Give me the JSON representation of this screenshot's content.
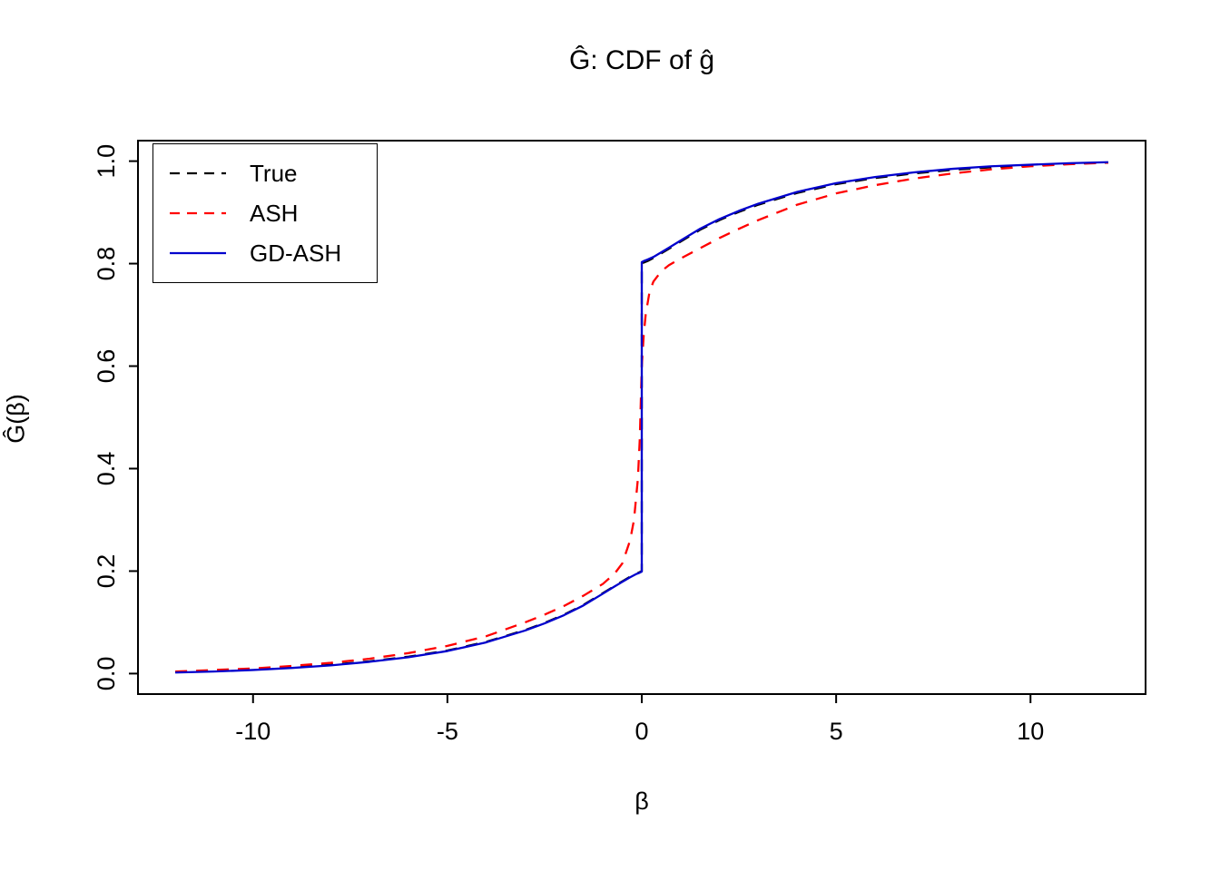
{
  "chart_data": {
    "type": "line",
    "title": "Ĝ: CDF of ĝ",
    "xlabel": "β",
    "ylabel": "Ĝ(β)",
    "xlim": [
      -12.96,
      12.96
    ],
    "ylim": [
      -0.04,
      1.04
    ],
    "xticks": [
      -10,
      -5,
      0,
      5,
      10
    ],
    "xticklabels": [
      "-10",
      "-5",
      "0",
      "5",
      "10"
    ],
    "yticks": [
      0.0,
      0.2,
      0.4,
      0.6,
      0.8,
      1.0
    ],
    "yticklabels": [
      "0.0",
      "0.2",
      "0.4",
      "0.6",
      "0.8",
      "1.0"
    ],
    "grid": false,
    "legend_position": "top-left",
    "series": [
      {
        "name": "True",
        "color": "#000000",
        "style": "dashed",
        "points": [
          [
            -12,
            0.003
          ],
          [
            -11,
            0.005
          ],
          [
            -10,
            0.008
          ],
          [
            -9,
            0.012
          ],
          [
            -8,
            0.017
          ],
          [
            -7,
            0.024
          ],
          [
            -6,
            0.033
          ],
          [
            -5,
            0.045
          ],
          [
            -4,
            0.062
          ],
          [
            -3,
            0.085
          ],
          [
            -2.5,
            0.099
          ],
          [
            -2,
            0.115
          ],
          [
            -1.5,
            0.134
          ],
          [
            -1,
            0.157
          ],
          [
            -0.7,
            0.171
          ],
          [
            -0.5,
            0.18
          ],
          [
            -0.3,
            0.189
          ],
          [
            -0.15,
            0.195
          ],
          [
            -0.05,
            0.198
          ],
          [
            0,
            0.2
          ],
          [
            0,
            0.8
          ],
          [
            0.05,
            0.802
          ],
          [
            0.15,
            0.805
          ],
          [
            0.3,
            0.811
          ],
          [
            0.5,
            0.82
          ],
          [
            0.7,
            0.829
          ],
          [
            1,
            0.843
          ],
          [
            1.5,
            0.866
          ],
          [
            2,
            0.885
          ],
          [
            2.5,
            0.901
          ],
          [
            3,
            0.915
          ],
          [
            4,
            0.938
          ],
          [
            5,
            0.955
          ],
          [
            6,
            0.967
          ],
          [
            7,
            0.976
          ],
          [
            8,
            0.983
          ],
          [
            9,
            0.988
          ],
          [
            10,
            0.992
          ],
          [
            11,
            0.995
          ],
          [
            12,
            0.997
          ]
        ]
      },
      {
        "name": "ASH",
        "color": "#ff0000",
        "style": "dashed",
        "points": [
          [
            -12,
            0.004
          ],
          [
            -11,
            0.007
          ],
          [
            -10,
            0.01
          ],
          [
            -9,
            0.015
          ],
          [
            -8,
            0.021
          ],
          [
            -7,
            0.029
          ],
          [
            -6,
            0.04
          ],
          [
            -5,
            0.054
          ],
          [
            -4,
            0.073
          ],
          [
            -3,
            0.1
          ],
          [
            -2.5,
            0.115
          ],
          [
            -2,
            0.132
          ],
          [
            -1.5,
            0.152
          ],
          [
            -1,
            0.175
          ],
          [
            -0.7,
            0.195
          ],
          [
            -0.5,
            0.215
          ],
          [
            -0.3,
            0.26
          ],
          [
            -0.2,
            0.3
          ],
          [
            -0.1,
            0.38
          ],
          [
            -0.05,
            0.46
          ],
          [
            0,
            0.6
          ],
          [
            0.05,
            0.66
          ],
          [
            0.1,
            0.7
          ],
          [
            0.2,
            0.745
          ],
          [
            0.3,
            0.765
          ],
          [
            0.5,
            0.785
          ],
          [
            0.7,
            0.797
          ],
          [
            1,
            0.81
          ],
          [
            1.5,
            0.83
          ],
          [
            2,
            0.85
          ],
          [
            2.5,
            0.868
          ],
          [
            3,
            0.885
          ],
          [
            4,
            0.915
          ],
          [
            5,
            0.937
          ],
          [
            6,
            0.953
          ],
          [
            7,
            0.966
          ],
          [
            8,
            0.976
          ],
          [
            9,
            0.984
          ],
          [
            10,
            0.99
          ],
          [
            11,
            0.994
          ],
          [
            12,
            0.997
          ]
        ]
      },
      {
        "name": "GD-ASH",
        "color": "#0000cd",
        "style": "solid",
        "points": [
          [
            -12,
            0.002
          ],
          [
            -11,
            0.004
          ],
          [
            -10,
            0.007
          ],
          [
            -9,
            0.011
          ],
          [
            -8,
            0.016
          ],
          [
            -7,
            0.023
          ],
          [
            -6,
            0.032
          ],
          [
            -5,
            0.044
          ],
          [
            -4,
            0.061
          ],
          [
            -3,
            0.084
          ],
          [
            -2.5,
            0.098
          ],
          [
            -2,
            0.114
          ],
          [
            -1.5,
            0.133
          ],
          [
            -1,
            0.156
          ],
          [
            -0.7,
            0.17
          ],
          [
            -0.5,
            0.179
          ],
          [
            -0.3,
            0.188
          ],
          [
            -0.15,
            0.194
          ],
          [
            -0.05,
            0.197
          ],
          [
            0,
            0.199
          ],
          [
            0,
            0.803
          ],
          [
            0.05,
            0.805
          ],
          [
            0.15,
            0.808
          ],
          [
            0.3,
            0.813
          ],
          [
            0.5,
            0.822
          ],
          [
            0.7,
            0.831
          ],
          [
            1,
            0.845
          ],
          [
            1.5,
            0.868
          ],
          [
            2,
            0.887
          ],
          [
            2.5,
            0.903
          ],
          [
            3,
            0.917
          ],
          [
            4,
            0.94
          ],
          [
            5,
            0.957
          ],
          [
            6,
            0.969
          ],
          [
            7,
            0.978
          ],
          [
            8,
            0.985
          ],
          [
            9,
            0.99
          ],
          [
            10,
            0.993
          ],
          [
            11,
            0.996
          ],
          [
            12,
            0.998
          ]
        ]
      }
    ]
  }
}
